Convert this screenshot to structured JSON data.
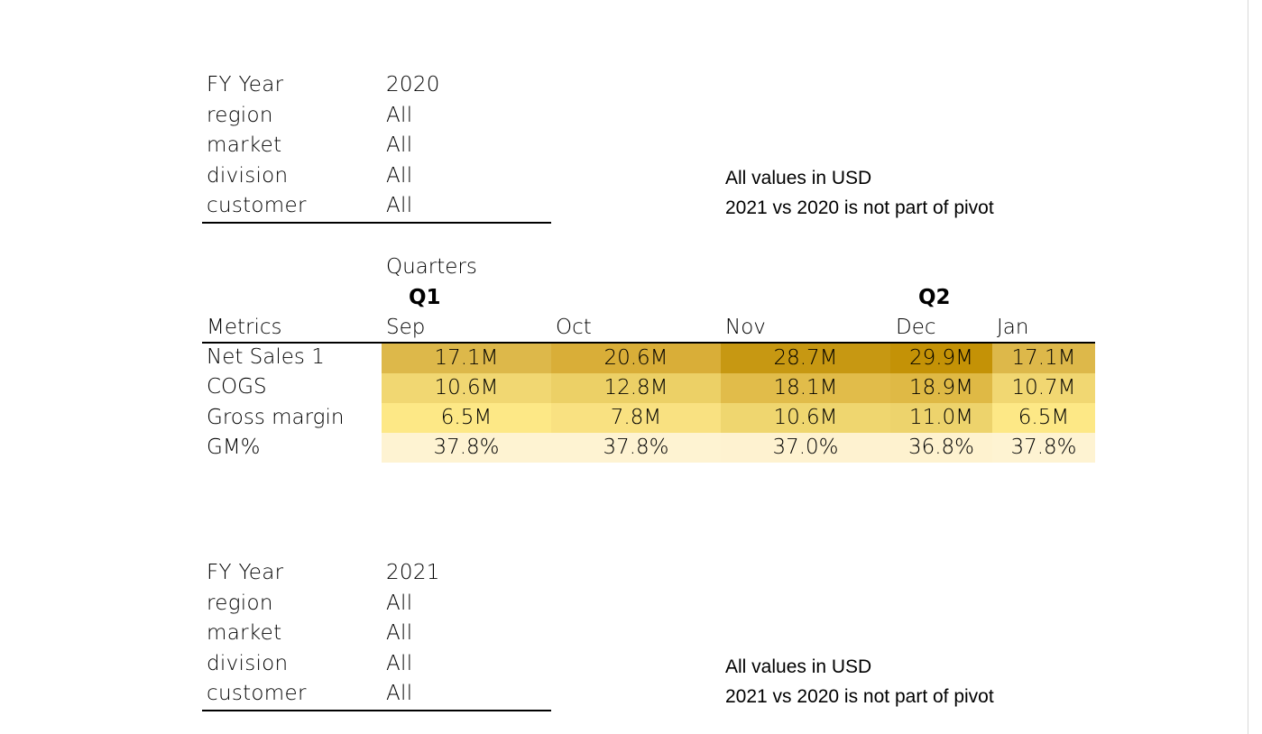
{
  "pivot_2020": {
    "filters": [
      {
        "key": "FY Year",
        "value": "2020"
      },
      {
        "key": "region",
        "value": "All"
      },
      {
        "key": "market",
        "value": "All"
      },
      {
        "key": "division",
        "value": "All"
      },
      {
        "key": "customer",
        "value": "All"
      }
    ],
    "notes": [
      "All values in USD",
      "2021 vs 2020 is not part of pivot"
    ],
    "column_group_label": "Quarters",
    "quarters": [
      "Q1",
      "Q2"
    ],
    "row_header": "Metrics",
    "months": [
      "Sep",
      "Oct",
      "Nov",
      "Dec",
      "Jan"
    ],
    "rows": [
      {
        "label": "Net Sales 1",
        "values": [
          "17.1M",
          "20.6M",
          "28.7M",
          "29.9M",
          "17.1M"
        ],
        "colors": [
          "#ddb84a",
          "#d9ae38",
          "#c79812",
          "#c49206",
          "#ddb84a"
        ]
      },
      {
        "label": "COGS",
        "values": [
          "10.6M",
          "12.8M",
          "18.1M",
          "18.9M",
          "10.7M"
        ],
        "colors": [
          "#f1d772",
          "#ecd066",
          "#e1bc4a",
          "#dfb945",
          "#f1d772"
        ]
      },
      {
        "label": "Gross margin",
        "values": [
          "6.5M",
          "7.8M",
          "10.6M",
          "11.0M",
          "6.5M"
        ],
        "colors": [
          "#fde886",
          "#f9e181",
          "#efd66f",
          "#edd36c",
          "#fde886"
        ]
      },
      {
        "label": "GM%",
        "values": [
          "37.8%",
          "37.8%",
          "37.0%",
          "36.8%",
          "37.8%"
        ],
        "colors": [
          "#fef3d2",
          "#fef3d2",
          "#fef2d0",
          "#fef2cf",
          "#fef3d2"
        ]
      }
    ]
  },
  "pivot_2021": {
    "filters": [
      {
        "key": "FY Year",
        "value": "2021"
      },
      {
        "key": "region",
        "value": "All"
      },
      {
        "key": "market",
        "value": "All"
      },
      {
        "key": "division",
        "value": "All"
      },
      {
        "key": "customer",
        "value": "All"
      }
    ],
    "notes": [
      "All values in USD",
      "2021 vs 2020 is not part of pivot"
    ]
  }
}
